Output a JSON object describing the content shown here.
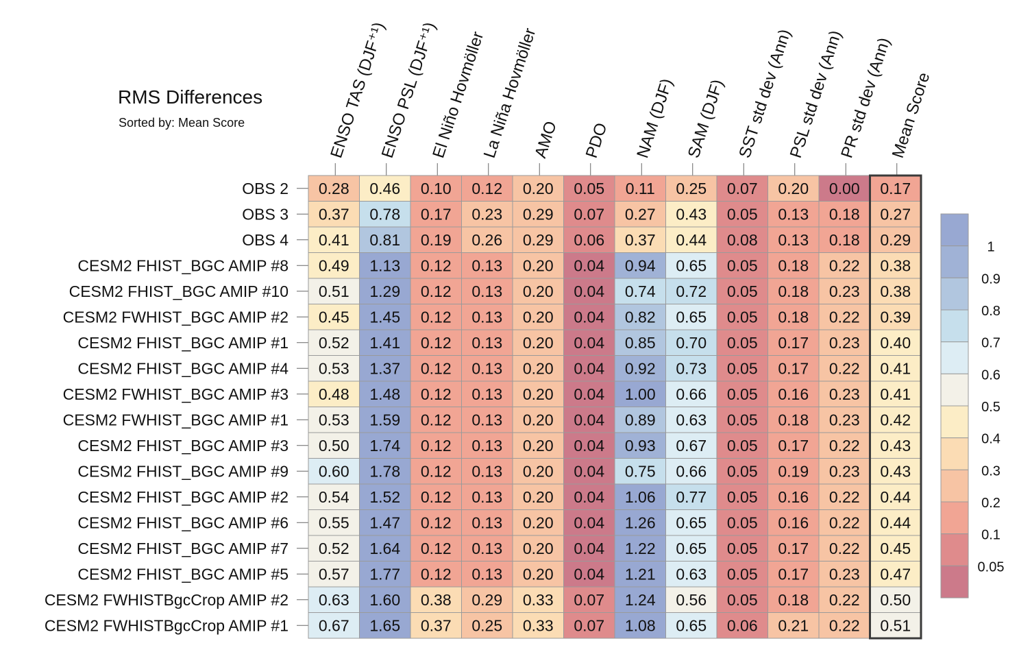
{
  "chart_data": {
    "type": "heatmap",
    "title": "RMS Differences",
    "subtitle": "Sorted by: Mean Score",
    "columns": [
      "ENSO TAS (DJF⁺¹)",
      "ENSO PSL (DJF⁺¹)",
      "El Niño Hovmöller",
      "La Niña Hovmöller",
      "AMO",
      "PDO",
      "NAM (DJF)",
      "SAM (DJF)",
      "SST std dev (Ann)",
      "PSL std dev (Ann)",
      "PR std dev (Ann)",
      "Mean Score"
    ],
    "rows": [
      "OBS 2",
      "OBS 3",
      "OBS 4",
      "CESM2 FHIST_BGC AMIP #8",
      "CESM2 FHIST_BGC AMIP #10",
      "CESM2 FWHIST_BGC AMIP #2",
      "CESM2 FHIST_BGC AMIP #1",
      "CESM2 FHIST_BGC AMIP #4",
      "CESM2 FWHIST_BGC AMIP #3",
      "CESM2 FWHIST_BGC AMIP #1",
      "CESM2 FHIST_BGC AMIP #3",
      "CESM2 FHIST_BGC AMIP #9",
      "CESM2 FHIST_BGC AMIP #2",
      "CESM2 FHIST_BGC AMIP #6",
      "CESM2 FHIST_BGC AMIP #7",
      "CESM2 FHIST_BGC AMIP #5",
      "CESM2 FWHISTBgcCrop AMIP #2",
      "CESM2 FWHISTBgcCrop AMIP #1"
    ],
    "values": [
      [
        "0.28",
        "0.46",
        "0.10",
        "0.12",
        "0.20",
        "0.05",
        "0.11",
        "0.25",
        "0.07",
        "0.20",
        "0.00",
        "0.17"
      ],
      [
        "0.37",
        "0.78",
        "0.17",
        "0.23",
        "0.29",
        "0.07",
        "0.27",
        "0.43",
        "0.05",
        "0.13",
        "0.18",
        "0.27"
      ],
      [
        "0.41",
        "0.81",
        "0.19",
        "0.26",
        "0.29",
        "0.06",
        "0.37",
        "0.44",
        "0.08",
        "0.13",
        "0.18",
        "0.29"
      ],
      [
        "0.49",
        "1.13",
        "0.12",
        "0.13",
        "0.20",
        "0.04",
        "0.94",
        "0.65",
        "0.05",
        "0.18",
        "0.22",
        "0.38"
      ],
      [
        "0.51",
        "1.29",
        "0.12",
        "0.13",
        "0.20",
        "0.04",
        "0.74",
        "0.72",
        "0.05",
        "0.18",
        "0.23",
        "0.38"
      ],
      [
        "0.45",
        "1.45",
        "0.12",
        "0.13",
        "0.20",
        "0.04",
        "0.82",
        "0.65",
        "0.05",
        "0.18",
        "0.22",
        "0.39"
      ],
      [
        "0.52",
        "1.41",
        "0.12",
        "0.13",
        "0.20",
        "0.04",
        "0.85",
        "0.70",
        "0.05",
        "0.17",
        "0.23",
        "0.40"
      ],
      [
        "0.53",
        "1.37",
        "0.12",
        "0.13",
        "0.20",
        "0.04",
        "0.92",
        "0.73",
        "0.05",
        "0.17",
        "0.22",
        "0.41"
      ],
      [
        "0.48",
        "1.48",
        "0.12",
        "0.13",
        "0.20",
        "0.04",
        "1.00",
        "0.66",
        "0.05",
        "0.16",
        "0.23",
        "0.41"
      ],
      [
        "0.53",
        "1.59",
        "0.12",
        "0.13",
        "0.20",
        "0.04",
        "0.89",
        "0.63",
        "0.05",
        "0.18",
        "0.23",
        "0.42"
      ],
      [
        "0.50",
        "1.74",
        "0.12",
        "0.13",
        "0.20",
        "0.04",
        "0.93",
        "0.67",
        "0.05",
        "0.17",
        "0.22",
        "0.43"
      ],
      [
        "0.60",
        "1.78",
        "0.12",
        "0.13",
        "0.20",
        "0.04",
        "0.75",
        "0.66",
        "0.05",
        "0.19",
        "0.23",
        "0.43"
      ],
      [
        "0.54",
        "1.52",
        "0.12",
        "0.13",
        "0.20",
        "0.04",
        "1.06",
        "0.77",
        "0.05",
        "0.16",
        "0.22",
        "0.44"
      ],
      [
        "0.55",
        "1.47",
        "0.12",
        "0.13",
        "0.20",
        "0.04",
        "1.26",
        "0.65",
        "0.05",
        "0.16",
        "0.22",
        "0.44"
      ],
      [
        "0.52",
        "1.64",
        "0.12",
        "0.13",
        "0.20",
        "0.04",
        "1.22",
        "0.65",
        "0.05",
        "0.17",
        "0.22",
        "0.45"
      ],
      [
        "0.57",
        "1.77",
        "0.12",
        "0.13",
        "0.20",
        "0.04",
        "1.21",
        "0.63",
        "0.05",
        "0.17",
        "0.23",
        "0.47"
      ],
      [
        "0.63",
        "1.60",
        "0.38",
        "0.29",
        "0.33",
        "0.07",
        "1.24",
        "0.56",
        "0.05",
        "0.18",
        "0.22",
        "0.50"
      ],
      [
        "0.67",
        "1.65",
        "0.37",
        "0.25",
        "0.33",
        "0.07",
        "1.08",
        "0.65",
        "0.06",
        "0.21",
        "0.22",
        "0.51"
      ]
    ],
    "colorbar": {
      "levels": [
        0.05,
        0.1,
        0.2,
        0.3,
        0.4,
        0.5,
        0.6,
        0.7,
        0.8,
        0.9,
        1
      ],
      "tick_labels": [
        "0.05",
        "0.1",
        "0.2",
        "0.3",
        "0.4",
        "0.5",
        "0.6",
        "0.7",
        "0.8",
        "0.9",
        "1"
      ],
      "colors": [
        "#cc7a8a",
        "#df8b8c",
        "#f1a594",
        "#f7c4a4",
        "#fbdcb4",
        "#fcedc6",
        "#f3f1e8",
        "#ddedf4",
        "#c6dfec",
        "#b1c6df",
        "#a0b2d6",
        "#98a8d2"
      ]
    },
    "highlight_column": "Mean Score"
  }
}
